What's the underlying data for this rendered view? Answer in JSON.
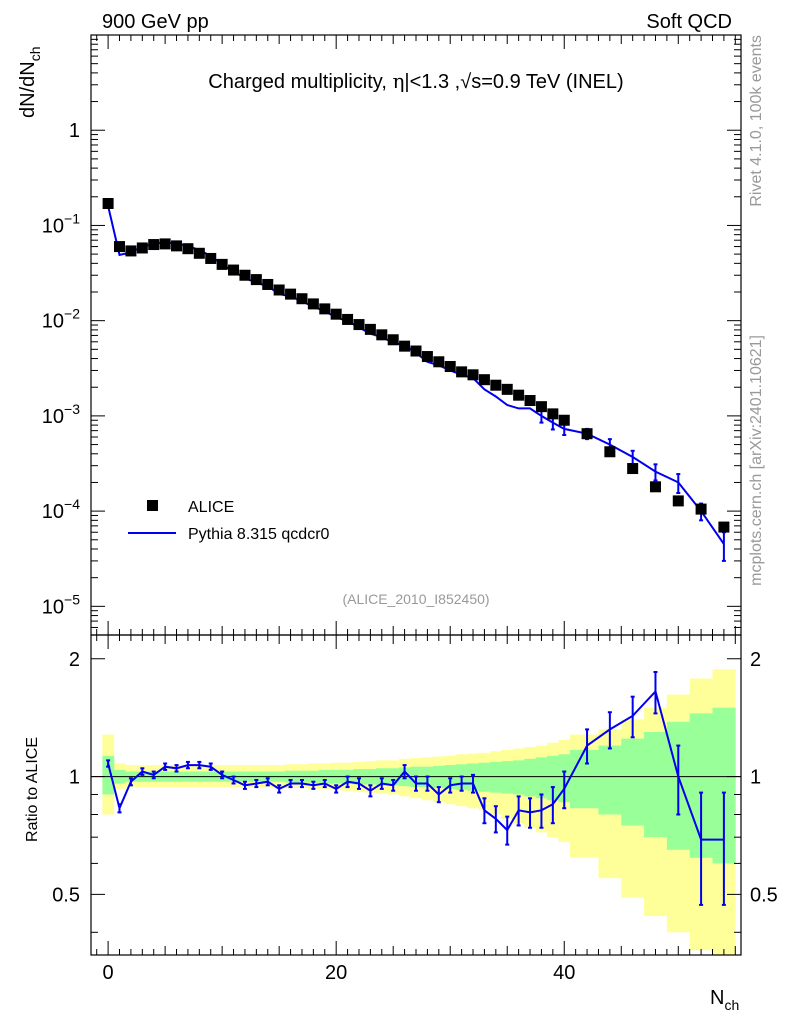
{
  "header": {
    "left": "900 GeV pp",
    "right": "Soft QCD"
  },
  "side_labels": {
    "rivet": "Rivet 4.1.0,  100k events",
    "mcplots": "mcplots.cern.ch [arXiv:2401.10621]"
  },
  "chart_data": [
    {
      "type": "scatter",
      "title": "Charged multiplicity, |η|<1.3 ,√s=0.9 TeV (INEL)",
      "title_parts": {
        "a": "Charged multiplicity, ",
        "b": "η",
        "c": "|<1.3 ,",
        "d": "√s",
        "e": "=0.9 TeV (INEL)"
      },
      "analysis_label": "(ALICE_2010_I852450)",
      "ylabel": "dN/dN",
      "ylabel_sub": "ch",
      "yscale": "log",
      "ylim": [
        5e-06,
        10
      ],
      "xlim": [
        -1.5,
        55.5
      ],
      "yticks": [
        {
          "v": 1,
          "base": "1",
          "exp": ""
        },
        {
          "v": 0.1,
          "base": "10",
          "exp": "−1"
        },
        {
          "v": 0.01,
          "base": "10",
          "exp": "−2"
        },
        {
          "v": 0.001,
          "base": "10",
          "exp": "−3"
        },
        {
          "v": 0.0001,
          "base": "10",
          "exp": "−4"
        },
        {
          "v": 1e-05,
          "base": "10",
          "exp": "−5"
        }
      ],
      "legend": {
        "position": "bottom-left",
        "entries": [
          "ALICE",
          "Pythia 8.315 qcdcr0"
        ]
      },
      "series": [
        {
          "name": "ALICE",
          "marker": "square",
          "x": [
            0,
            1,
            2,
            3,
            4,
            5,
            6,
            7,
            8,
            9,
            10,
            11,
            12,
            13,
            14,
            15,
            16,
            17,
            18,
            19,
            20,
            21,
            22,
            23,
            24,
            25,
            26,
            27,
            28,
            29,
            30,
            31,
            32,
            33,
            34,
            35,
            36,
            37,
            38,
            39,
            40,
            42,
            44,
            46,
            48,
            50,
            52,
            54
          ],
          "y": [
            0.17,
            0.06,
            0.054,
            0.058,
            0.063,
            0.064,
            0.061,
            0.057,
            0.051,
            0.045,
            0.039,
            0.034,
            0.03,
            0.027,
            0.024,
            0.021,
            0.019,
            0.017,
            0.015,
            0.0133,
            0.0117,
            0.0103,
            0.0091,
            0.0081,
            0.0071,
            0.0063,
            0.0054,
            0.0048,
            0.0042,
            0.0037,
            0.0033,
            0.0029,
            0.0027,
            0.0024,
            0.0021,
            0.0019,
            0.00165,
            0.00145,
            0.00125,
            0.00105,
            0.0009,
            0.00065,
            0.00042,
            0.00028,
            0.00018,
            0.000128,
            0.000105,
            6.8e-05
          ]
        },
        {
          "name": "Pythia 8.315 qcdcr0",
          "color": "#0000ee",
          "x": [
            0,
            1,
            2,
            3,
            4,
            5,
            6,
            7,
            8,
            9,
            10,
            11,
            12,
            13,
            14,
            15,
            16,
            17,
            18,
            19,
            20,
            21,
            22,
            23,
            24,
            25,
            26,
            27,
            28,
            29,
            30,
            31,
            32,
            33,
            34,
            35,
            36,
            37,
            38,
            39,
            40,
            42,
            44,
            46,
            48,
            50,
            52,
            54
          ],
          "y": [
            0.16,
            0.049,
            0.052,
            0.06,
            0.064,
            0.067,
            0.064,
            0.061,
            0.055,
            0.048,
            0.039,
            0.033,
            0.028,
            0.025,
            0.023,
            0.019,
            0.018,
            0.016,
            0.014,
            0.0126,
            0.0108,
            0.0099,
            0.0085,
            0.0073,
            0.0067,
            0.0059,
            0.0055,
            0.0046,
            0.0037,
            0.0034,
            0.003,
            0.0027,
            0.0025,
            0.0019,
            0.0016,
            0.0013,
            0.0012,
            0.0012,
            0.001,
            0.00085,
            0.00073,
            0.00065,
            0.0005,
            0.00037,
            0.00026,
            0.0002,
            0.0001,
            4.5e-05
          ],
          "yerr": [
            0,
            0,
            0,
            0,
            0,
            0,
            0,
            0,
            0,
            0,
            0,
            0,
            0,
            0,
            0,
            0,
            0,
            0,
            0,
            0,
            0,
            0,
            0,
            0,
            0,
            0,
            0,
            0,
            0,
            0,
            0,
            0,
            0,
            0,
            0,
            0,
            0,
            0,
            0.00015,
            0.00013,
            0.0001,
            8e-05,
            7e-05,
            6e-05,
            5e-05,
            4.5e-05,
            2e-05,
            1.5e-05
          ]
        }
      ]
    },
    {
      "type": "line",
      "ylabel": "Ratio to ALICE",
      "xlabel": "N",
      "xlabel_sub": "ch",
      "ylim": [
        0.35,
        2.3
      ],
      "xlim": [
        -1.5,
        55.5
      ],
      "yticks": [
        0.5,
        1,
        2
      ],
      "xticks": [
        0,
        20,
        40
      ],
      "reference_line": 1,
      "bands": {
        "x_edges": [
          -0.5,
          0.5,
          1.5,
          2.5,
          3.5,
          4.5,
          5.5,
          6.5,
          7.5,
          8.5,
          9.5,
          10.5,
          11.5,
          12.5,
          13.5,
          14.5,
          15.5,
          16.5,
          17.5,
          18.5,
          19.5,
          20.5,
          21.5,
          22.5,
          23.5,
          24.5,
          25.5,
          26.5,
          27.5,
          28.5,
          29.5,
          30.5,
          31.5,
          32.5,
          33.5,
          34.5,
          35.5,
          36.5,
          37.5,
          38.5,
          39.5,
          40.5,
          43,
          45,
          47,
          49,
          51,
          53,
          55
        ],
        "green_upper": [
          1.13,
          1.04,
          1.03,
          1.03,
          1.03,
          1.03,
          1.03,
          1.03,
          1.03,
          1.03,
          1.03,
          1.03,
          1.03,
          1.03,
          1.03,
          1.03,
          1.035,
          1.035,
          1.035,
          1.04,
          1.04,
          1.04,
          1.045,
          1.045,
          1.05,
          1.05,
          1.055,
          1.06,
          1.06,
          1.065,
          1.07,
          1.075,
          1.08,
          1.085,
          1.09,
          1.095,
          1.1,
          1.11,
          1.12,
          1.13,
          1.14,
          1.17,
          1.2,
          1.25,
          1.3,
          1.38,
          1.45,
          1.5
        ],
        "green_lower": [
          0.9,
          0.96,
          0.97,
          0.97,
          0.97,
          0.97,
          0.97,
          0.97,
          0.97,
          0.97,
          0.97,
          0.97,
          0.97,
          0.97,
          0.97,
          0.97,
          0.965,
          0.965,
          0.965,
          0.96,
          0.96,
          0.96,
          0.955,
          0.955,
          0.95,
          0.95,
          0.945,
          0.94,
          0.94,
          0.935,
          0.93,
          0.925,
          0.92,
          0.915,
          0.91,
          0.905,
          0.9,
          0.89,
          0.88,
          0.87,
          0.86,
          0.83,
          0.8,
          0.75,
          0.7,
          0.65,
          0.62,
          0.6
        ],
        "yellow_upper": [
          1.28,
          1.08,
          1.07,
          1.07,
          1.07,
          1.07,
          1.07,
          1.07,
          1.07,
          1.07,
          1.07,
          1.07,
          1.07,
          1.07,
          1.07,
          1.07,
          1.075,
          1.075,
          1.08,
          1.08,
          1.085,
          1.085,
          1.09,
          1.095,
          1.1,
          1.1,
          1.11,
          1.115,
          1.12,
          1.125,
          1.13,
          1.14,
          1.145,
          1.15,
          1.16,
          1.17,
          1.18,
          1.19,
          1.2,
          1.22,
          1.24,
          1.28,
          1.32,
          1.4,
          1.5,
          1.62,
          1.78,
          1.88
        ],
        "yellow_lower": [
          0.8,
          0.93,
          0.94,
          0.94,
          0.94,
          0.94,
          0.94,
          0.94,
          0.94,
          0.94,
          0.94,
          0.94,
          0.94,
          0.94,
          0.94,
          0.94,
          0.935,
          0.935,
          0.93,
          0.93,
          0.925,
          0.92,
          0.915,
          0.91,
          0.905,
          0.9,
          0.89,
          0.88,
          0.87,
          0.86,
          0.85,
          0.84,
          0.83,
          0.82,
          0.8,
          0.78,
          0.76,
          0.74,
          0.72,
          0.7,
          0.68,
          0.62,
          0.55,
          0.49,
          0.44,
          0.4,
          0.36,
          0.35
        ]
      },
      "series": [
        {
          "name": "Pythia 8.315 qcdcr0 / ALICE",
          "color": "#0000ee",
          "x": [
            0,
            1,
            2,
            3,
            4,
            5,
            6,
            7,
            8,
            9,
            10,
            11,
            12,
            13,
            14,
            15,
            16,
            17,
            18,
            19,
            20,
            21,
            22,
            23,
            24,
            25,
            26,
            27,
            28,
            29,
            30,
            31,
            32,
            33,
            34,
            35,
            36,
            37,
            38,
            39,
            40,
            42,
            44,
            46,
            48,
            50,
            52,
            54
          ],
          "y": [
            1.08,
            0.83,
            0.97,
            1.03,
            1.01,
            1.06,
            1.05,
            1.07,
            1.07,
            1.06,
            1.01,
            0.98,
            0.95,
            0.96,
            0.97,
            0.93,
            0.96,
            0.96,
            0.95,
            0.96,
            0.93,
            0.97,
            0.96,
            0.92,
            0.96,
            0.95,
            1.03,
            0.96,
            0.96,
            0.9,
            0.95,
            0.96,
            0.96,
            0.82,
            0.78,
            0.73,
            0.82,
            0.81,
            0.82,
            0.85,
            0.93,
            1.2,
            1.32,
            1.43,
            1.65,
            1.0,
            0.69,
            0.69
          ],
          "yerr": [
            0.02,
            0.02,
            0.02,
            0.02,
            0.02,
            0.02,
            0.02,
            0.02,
            0.02,
            0.02,
            0.02,
            0.02,
            0.02,
            0.02,
            0.02,
            0.02,
            0.02,
            0.02,
            0.02,
            0.02,
            0.02,
            0.03,
            0.03,
            0.03,
            0.03,
            0.03,
            0.04,
            0.04,
            0.04,
            0.04,
            0.04,
            0.04,
            0.05,
            0.06,
            0.06,
            0.06,
            0.07,
            0.07,
            0.08,
            0.09,
            0.1,
            0.12,
            0.14,
            0.17,
            0.2,
            0.2,
            0.22,
            0.22
          ]
        }
      ]
    }
  ]
}
